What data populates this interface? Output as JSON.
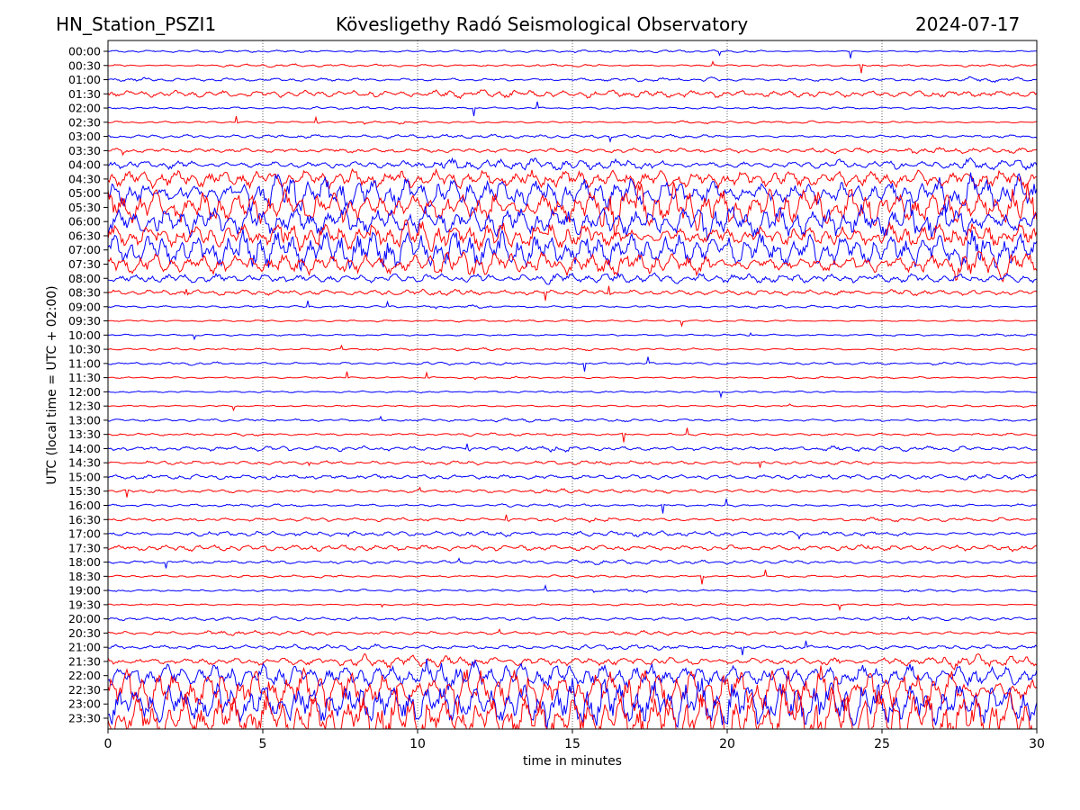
{
  "chart_data": {
    "type": "line",
    "title_left": "HN_Station_PSZI1",
    "title": "Kövesligethy Radó Seismological Observatory",
    "title_right": "2024-07-17",
    "xlabel": "time in minutes",
    "ylabel": "UTC (local time = UTC + 02:00)",
    "xlim": [
      0,
      30
    ],
    "xticks": [
      "0",
      "5",
      "10",
      "15",
      "20",
      "25",
      "30"
    ],
    "xtick_values": [
      0,
      5,
      10,
      15,
      20,
      25,
      30
    ],
    "grid": "vertical dotted at 5-minute intervals",
    "series_colors": [
      "#0000ff",
      "#ff0000"
    ],
    "rows": [
      {
        "label": "00:00",
        "amplitude": 0.1
      },
      {
        "label": "00:30",
        "amplitude": 0.1
      },
      {
        "label": "01:00",
        "amplitude": 0.15
      },
      {
        "label": "01:30",
        "amplitude": 0.3
      },
      {
        "label": "02:00",
        "amplitude": 0.1
      },
      {
        "label": "02:30",
        "amplitude": 0.1
      },
      {
        "label": "03:00",
        "amplitude": 0.15
      },
      {
        "label": "03:30",
        "amplitude": 0.2
      },
      {
        "label": "04:00",
        "amplitude": 0.4
      },
      {
        "label": "04:30",
        "amplitude": 0.8
      },
      {
        "label": "05:00",
        "amplitude": 1.2
      },
      {
        "label": "05:30",
        "amplitude": 1.5
      },
      {
        "label": "06:00",
        "amplitude": 1.3
      },
      {
        "label": "06:30",
        "amplitude": 1.0
      },
      {
        "label": "07:00",
        "amplitude": 1.4
      },
      {
        "label": "07:30",
        "amplitude": 0.9
      },
      {
        "label": "08:00",
        "amplitude": 0.4
      },
      {
        "label": "08:30",
        "amplitude": 0.25
      },
      {
        "label": "09:00",
        "amplitude": 0.1
      },
      {
        "label": "09:30",
        "amplitude": 0.08
      },
      {
        "label": "10:00",
        "amplitude": 0.08
      },
      {
        "label": "10:30",
        "amplitude": 0.1
      },
      {
        "label": "11:00",
        "amplitude": 0.12
      },
      {
        "label": "11:30",
        "amplitude": 0.08
      },
      {
        "label": "12:00",
        "amplitude": 0.08
      },
      {
        "label": "12:30",
        "amplitude": 0.08
      },
      {
        "label": "13:00",
        "amplitude": 0.12
      },
      {
        "label": "13:30",
        "amplitude": 0.12
      },
      {
        "label": "14:00",
        "amplitude": 0.2
      },
      {
        "label": "14:30",
        "amplitude": 0.15
      },
      {
        "label": "15:00",
        "amplitude": 0.2
      },
      {
        "label": "15:30",
        "amplitude": 0.15
      },
      {
        "label": "16:00",
        "amplitude": 0.12
      },
      {
        "label": "16:30",
        "amplitude": 0.15
      },
      {
        "label": "17:00",
        "amplitude": 0.2
      },
      {
        "label": "17:30",
        "amplitude": 0.25
      },
      {
        "label": "18:00",
        "amplitude": 0.15
      },
      {
        "label": "18:30",
        "amplitude": 0.1
      },
      {
        "label": "19:00",
        "amplitude": 0.1
      },
      {
        "label": "19:30",
        "amplitude": 0.08
      },
      {
        "label": "20:00",
        "amplitude": 0.15
      },
      {
        "label": "20:30",
        "amplitude": 0.15
      },
      {
        "label": "21:00",
        "amplitude": 0.2
      },
      {
        "label": "21:30",
        "amplitude": 0.4
      },
      {
        "label": "22:00",
        "amplitude": 1.0
      },
      {
        "label": "22:30",
        "amplitude": 1.5
      },
      {
        "label": "23:00",
        "amplitude": 1.8
      },
      {
        "label": "23:30",
        "amplitude": 2.0
      }
    ]
  }
}
